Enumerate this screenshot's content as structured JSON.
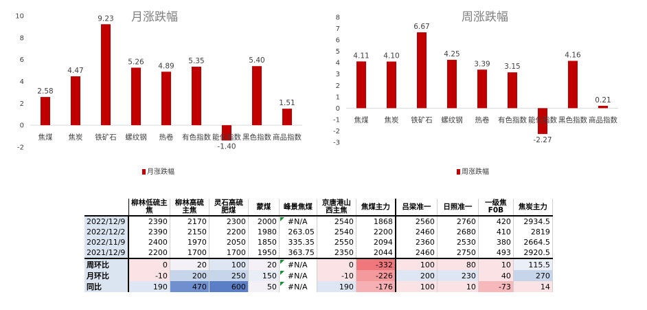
{
  "chart_data": [
    {
      "type": "bar",
      "title": "月涨跌幅",
      "categories": [
        "焦煤",
        "焦炭",
        "铁矿石",
        "螺纹钢",
        "热卷",
        "有色指数",
        "能化指数",
        "黑色指数",
        "商品指数"
      ],
      "series": [
        {
          "name": "月涨跌幅",
          "values": [
            2.58,
            4.47,
            9.23,
            5.26,
            4.89,
            5.35,
            -1.4,
            5.4,
            1.51
          ]
        }
      ],
      "data_labels": [
        "2.58",
        "4.47",
        "9.23",
        "5.26",
        "4.89",
        "5.35",
        "-1.40",
        "5.40",
        "1.51"
      ],
      "ylim": [
        -2,
        10
      ],
      "yticks": [
        -2,
        0,
        2,
        4,
        6,
        8,
        10
      ],
      "ytick_labels": [
        "-2",
        "0",
        "2",
        "4",
        "6",
        "8",
        "10"
      ],
      "grid": false,
      "legend": "bottom",
      "color": "#c00000"
    },
    {
      "type": "bar",
      "title": "周涨跌幅",
      "categories": [
        "焦煤",
        "焦炭",
        "铁矿石",
        "螺纹钢",
        "热卷",
        "有色指数",
        "能化指数",
        "黑色指数",
        "商品指数"
      ],
      "series": [
        {
          "name": "周涨跌幅",
          "values": [
            4.11,
            4.1,
            6.67,
            4.25,
            3.39,
            3.15,
            -2.27,
            4.16,
            0.21
          ]
        }
      ],
      "data_labels": [
        "4.11",
        "4.10",
        "6.67",
        "4.25",
        "3.39",
        "3.15",
        "-2.27",
        "4.16",
        "0.21"
      ],
      "ylim": [
        -3,
        8
      ],
      "yticks": [
        -3,
        -2,
        -1,
        0,
        1,
        2,
        3,
        4,
        5,
        6,
        7,
        8
      ],
      "ytick_labels": [
        "-3",
        "-2",
        "-1",
        "0",
        "1",
        "2",
        "3",
        "4",
        "5",
        "6",
        "7",
        "8"
      ],
      "grid": false,
      "legend": "bottom",
      "color": "#c00000"
    },
    {
      "type": "table",
      "columns": [
        "柳林低硫主焦",
        "柳林高硫主焦",
        "灵石高硫肥煤",
        "蒙煤",
        "峰景焦煤",
        "京唐港山西主焦",
        "焦煤主力",
        "吕梁准一",
        "日照准一",
        "一级焦F0B",
        "焦炭主力"
      ],
      "rows": [
        {
          "label": "2022/12/9",
          "cells": [
            "2390",
            "2170",
            "2300",
            "2000",
            "#N/A",
            "2540",
            "1868",
            "2560",
            "2760",
            "420",
            "2934.5"
          ]
        },
        {
          "label": "2022/12/2",
          "cells": [
            "2390",
            "2150",
            "2200",
            "1980",
            "263.05",
            "2540",
            "2200",
            "2460",
            "2680",
            "410",
            "2819"
          ]
        },
        {
          "label": "2022/11/9",
          "cells": [
            "2400",
            "1970",
            "2050",
            "1850",
            "335.35",
            "2550",
            "2094",
            "2360",
            "2530",
            "380",
            "2664.5"
          ]
        },
        {
          "label": "2021/12/9",
          "cells": [
            "2200",
            "1700",
            "1700",
            "1950",
            "363.75",
            "2350",
            "2044",
            "2460",
            "2750",
            "493",
            "2920.5"
          ]
        },
        {
          "label": "周环比",
          "cells": [
            "0",
            "20",
            "100",
            "20",
            "#N/A",
            "0",
            "-332",
            "100",
            "80",
            "10",
            "115.5"
          ]
        },
        {
          "label": "月环比",
          "cells": [
            "-10",
            "200",
            "250",
            "150",
            "#N/A",
            "-10",
            "-226",
            "200",
            "230",
            "40",
            "270"
          ]
        },
        {
          "label": "同比",
          "cells": [
            "190",
            "470",
            "600",
            "50",
            "#N/A",
            "190",
            "-176",
            "100",
            "10",
            "-73",
            "14"
          ]
        }
      ],
      "cell_colors": [
        [
          "#ffffff",
          "#ffffff",
          "#ffffff",
          "#ffffff",
          "#ffffff",
          "#ffffff",
          "#ffffff",
          "#ffffff",
          "#ffffff",
          "#ffffff",
          "#ffffff"
        ],
        [
          "#ffffff",
          "#ffffff",
          "#ffffff",
          "#ffffff",
          "#ffffff",
          "#ffffff",
          "#ffffff",
          "#ffffff",
          "#ffffff",
          "#ffffff",
          "#ffffff"
        ],
        [
          "#ffffff",
          "#ffffff",
          "#ffffff",
          "#ffffff",
          "#ffffff",
          "#ffffff",
          "#ffffff",
          "#ffffff",
          "#ffffff",
          "#ffffff",
          "#ffffff"
        ],
        [
          "#ffffff",
          "#ffffff",
          "#ffffff",
          "#ffffff",
          "#ffffff",
          "#ffffff",
          "#ffffff",
          "#ffffff",
          "#ffffff",
          "#ffffff",
          "#ffffff"
        ],
        [
          "#fbe3e5",
          "#f3f0f6",
          "#dde6f2",
          "#f3f0f6",
          "#ffffff",
          "#fbe3e5",
          "#f0777b",
          "#fbe3e5",
          "#fbe3e5",
          "#fbe3e5",
          "#eaeef6"
        ],
        [
          "#fbe3e5",
          "#c7d5ea",
          "#c7d5ea",
          "#e9edf5",
          "#ffffff",
          "#fbe3e5",
          "#f4999c",
          "#dde6f2",
          "#dde6f2",
          "#fbe3e5",
          "#c7d5ea"
        ],
        [
          "#dde6f2",
          "#6f8fcf",
          "#5b7fc7",
          "#f3f0f6",
          "#ffffff",
          "#dde6f2",
          "#f6b0b3",
          "#fbe3e5",
          "#fbe3e5",
          "#f7b8bb",
          "#fbe3e5"
        ]
      ]
    }
  ]
}
